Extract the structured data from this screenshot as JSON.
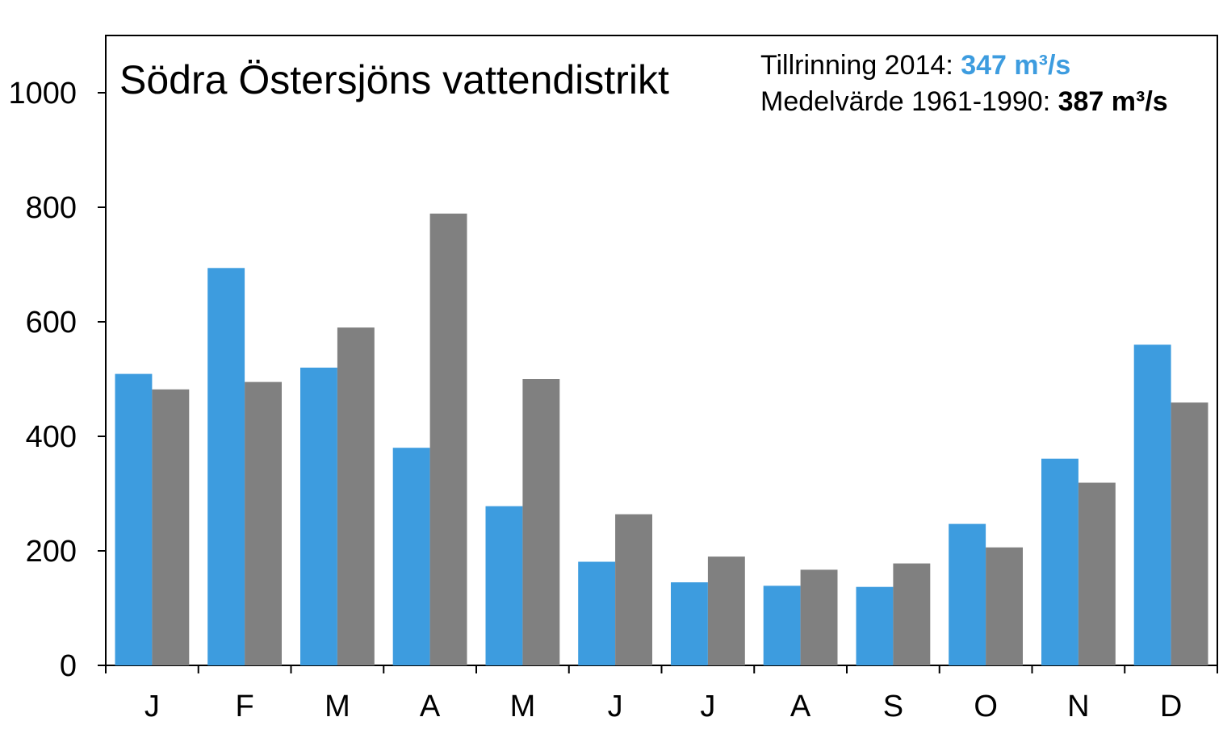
{
  "chart_data": {
    "type": "bar",
    "title": "Södra Östersjöns vattendistrikt",
    "categories": [
      "J",
      "F",
      "M",
      "A",
      "M",
      "J",
      "J",
      "A",
      "S",
      "O",
      "N",
      "D"
    ],
    "series": [
      {
        "values": [
          509,
          694,
          520,
          380,
          278,
          181,
          145,
          139,
          137,
          247,
          361,
          560
        ],
        "color": "#3d9cdf"
      },
      {
        "values": [
          482,
          495,
          590,
          789,
          500,
          264,
          190,
          167,
          178,
          206,
          319,
          459
        ],
        "color": "#808080"
      }
    ],
    "yticks": [
      0,
      200,
      400,
      600,
      800,
      1000
    ],
    "ylim": [
      0,
      1100
    ],
    "grid": false,
    "annotation": {
      "line1_label": "Tillrinning 2014: ",
      "line1_value": "347 m³/s",
      "line1_value_color": "#3d9cdf",
      "line2_label": "Medelvärde 1961-1990: ",
      "line2_value": "387 m³/s"
    }
  }
}
